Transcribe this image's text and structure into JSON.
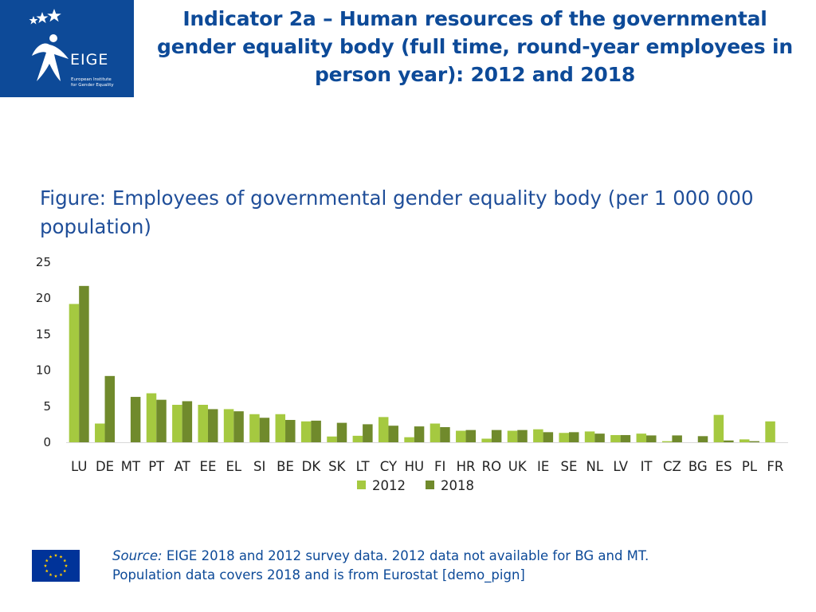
{
  "logo": {
    "brand": "EIGE",
    "subtitle_line1": "European Institute",
    "subtitle_line2": "for Gender Equality",
    "icon": "eige-star-figure-icon"
  },
  "slide_title": "Indicator 2a – Human resources of the governmental gender equality body (full time, round-year employees in person year): 2012 and 2018",
  "figure_title": "Figure: Employees of governmental gender equality body (per 1 000 000 population)",
  "colors": {
    "brand_blue": "#0d4a98",
    "series_2012": "#a5c940",
    "series_2018": "#708a2c",
    "eu_flag": "#003399",
    "eu_star": "#ffcc00"
  },
  "chart_data": {
    "type": "bar",
    "title": "",
    "xlabel": "",
    "ylabel": "",
    "ylim": [
      0,
      25
    ],
    "yticks": [
      0,
      5,
      10,
      15,
      20,
      25
    ],
    "grid": false,
    "legend_position": "bottom",
    "categories": [
      "LU",
      "DE",
      "MT",
      "PT",
      "AT",
      "EE",
      "EL",
      "SI",
      "BE",
      "DK",
      "SK",
      "LT",
      "CY",
      "HU",
      "FI",
      "HR",
      "RO",
      "UK",
      "IE",
      "SE",
      "NL",
      "LV",
      "IT",
      "CZ",
      "BG",
      "ES",
      "PL",
      "FR"
    ],
    "series": [
      {
        "name": "2012",
        "values": [
          19.2,
          2.6,
          null,
          6.8,
          5.2,
          5.2,
          4.6,
          3.9,
          3.9,
          2.9,
          0.8,
          0.9,
          3.5,
          0.7,
          2.6,
          1.6,
          0.5,
          1.6,
          1.8,
          1.3,
          1.5,
          1.0,
          1.2,
          0.15,
          null,
          3.8,
          0.4,
          2.9
        ]
      },
      {
        "name": "2018",
        "values": [
          21.7,
          9.2,
          6.3,
          5.9,
          5.7,
          4.6,
          4.3,
          3.4,
          3.1,
          3.0,
          2.7,
          2.5,
          2.3,
          2.2,
          2.1,
          1.7,
          1.7,
          1.7,
          1.4,
          1.4,
          1.2,
          1.0,
          0.95,
          0.95,
          0.85,
          0.25,
          0.15,
          0.0
        ]
      }
    ]
  },
  "source": {
    "label": "Source:",
    "text": " EIGE 2018 and 2012 survey data. 2012 data not available for BG and MT.",
    "line2": "Population data covers 2018 and is from Eurostat [demo_pign]"
  },
  "eu_flag": {
    "icon": "eu-flag-icon"
  }
}
